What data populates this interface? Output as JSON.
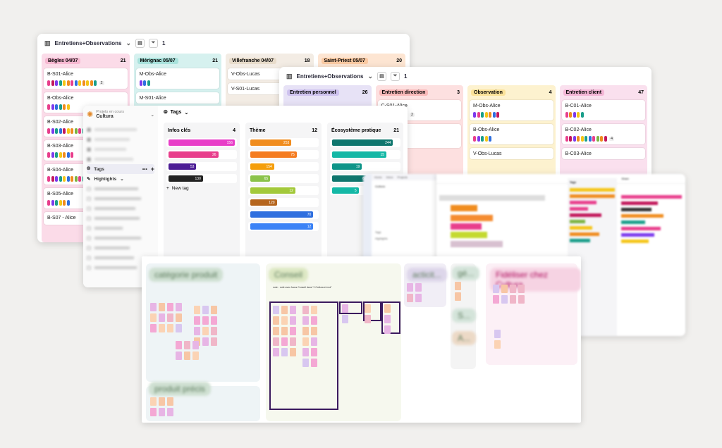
{
  "window1": {
    "title": "Entretiens+Observations",
    "filter_count": "1",
    "columns": [
      {
        "name": "Bègles 04/07",
        "count": "21",
        "cards": [
          "B-S01-Alice",
          "B-Obs-Alice",
          "B-S02-Alice",
          "B-S03-Alice",
          "B-S04-Alice",
          "B-S05-Alice",
          "B-S07 - Alice"
        ]
      },
      {
        "name": "Mérignac 05/07",
        "count": "21",
        "cards": [
          "M-Obs-Alice",
          "M-S01-Alice"
        ]
      },
      {
        "name": "Villefranche 04/07",
        "count": "18",
        "cards": [
          "V-Obs-Lucas",
          "V-S01-Lucas"
        ]
      },
      {
        "name": "Saint-Priest 05/07",
        "count": "20",
        "cards": []
      }
    ],
    "first_card_badge": "2"
  },
  "window2": {
    "title": "Entretiens+Observations",
    "filter_count": "1",
    "columns": [
      {
        "name": "Entretien personnel",
        "count": "26",
        "cards": []
      },
      {
        "name": "Entretien direction",
        "count": "3",
        "cards": [
          "C-S01-Alice"
        ],
        "badge": "2"
      },
      {
        "name": "Observation",
        "count": "4",
        "cards": [
          "M-Obs-Alice",
          "B-Obs-Alice",
          "V-Obs-Lucas"
        ]
      },
      {
        "name": "Entretien client",
        "count": "47",
        "cards": [
          "B-C01-Alice",
          "B-C02-Alice",
          "B-C03-Alice"
        ],
        "badge": "4"
      }
    ]
  },
  "window3": {
    "project_caption": "Projets en cours",
    "project": "Cultura",
    "header": "Tags",
    "nav": {
      "tags": "Tags",
      "highlights": "Highlights",
      "add": "+",
      "more": "•••"
    },
    "columns": [
      {
        "name": "Infos clés",
        "count": "4",
        "values": [
          "156",
          "26",
          "53",
          "130"
        ],
        "new_tag": "New tag"
      },
      {
        "name": "Thème",
        "count": "12",
        "values": [
          "253",
          "75",
          "154",
          "65",
          "12",
          "120",
          "70",
          "12"
        ]
      },
      {
        "name": "Écosystème pratique",
        "count": "21",
        "values": [
          "244",
          "15",
          "19",
          "6",
          "5"
        ]
      }
    ]
  },
  "window4": {
    "project": "Cultura",
    "header": "Tags",
    "share": "Share",
    "side": {
      "highlights": "Highlights",
      "tags": "Tags"
    }
  },
  "whiteboard": {
    "zones": [
      "catégorie produit",
      "Conseil",
      "acticit...",
      "gé...",
      "Fidéliser chez Cultura",
      "produit précis",
      "S...",
      "A..."
    ],
    "zone_note": "note : noté avec focus Conseil dans \"J Cultura et moi\""
  },
  "colors": {
    "pink": "#e83e8c",
    "orange": "#f08c1e",
    "teal": "#1a9e8a",
    "purple": "#7c3aed",
    "yellow": "#f5c518",
    "green": "#7cb342",
    "blue": "#2f6fdf",
    "dark": "#333",
    "lime": "#c4d930",
    "magenta": "#c2185b"
  }
}
